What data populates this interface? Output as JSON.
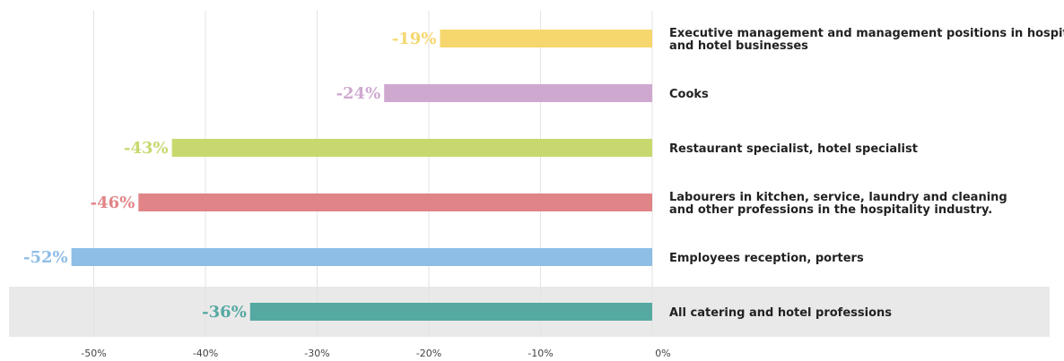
{
  "chart_data": {
    "type": "bar",
    "orientation": "horizontal",
    "title": "",
    "xlabel": "",
    "ylabel": "",
    "xlim": [
      -0.58,
      0
    ],
    "x_ticks": [
      {
        "value": -0.5,
        "label": "-50%"
      },
      {
        "value": -0.4,
        "label": "-40%"
      },
      {
        "value": -0.3,
        "label": "-30%"
      },
      {
        "value": -0.2,
        "label": "-20%"
      },
      {
        "value": -0.1,
        "label": "-10%"
      },
      {
        "value": 0,
        "label": "0%"
      }
    ],
    "grid": true,
    "categories": [
      {
        "lines": [
          "Executive management and management positions in hospitality",
          "and hotel businesses"
        ],
        "value": -0.19,
        "label": "-19%",
        "color": "#f5d76e",
        "highlight": false
      },
      {
        "lines": [
          "Cooks"
        ],
        "value": -0.24,
        "label": "-24%",
        "color": "#cfa8d0",
        "highlight": false
      },
      {
        "lines": [
          "Restaurant specialist, hotel specialist"
        ],
        "value": -0.43,
        "label": "-43%",
        "color": "#c8d86e",
        "highlight": false
      },
      {
        "lines": [
          "Labourers in kitchen, service, laundry and cleaning",
          "and other professions in the hospitality industry."
        ],
        "value": -0.46,
        "label": "-46%",
        "color": "#e08487",
        "highlight": false
      },
      {
        "lines": [
          "Employees reception, porters"
        ],
        "value": -0.52,
        "label": "-52%",
        "color": "#8ebde6",
        "highlight": false
      },
      {
        "lines": [
          "All catering and hotel professions"
        ],
        "value": -0.36,
        "label": "-36%",
        "color": "#55a9a1",
        "highlight": true
      }
    ],
    "highlight_color": "#e9e9e9",
    "grid_color": "#e3e3e3"
  }
}
